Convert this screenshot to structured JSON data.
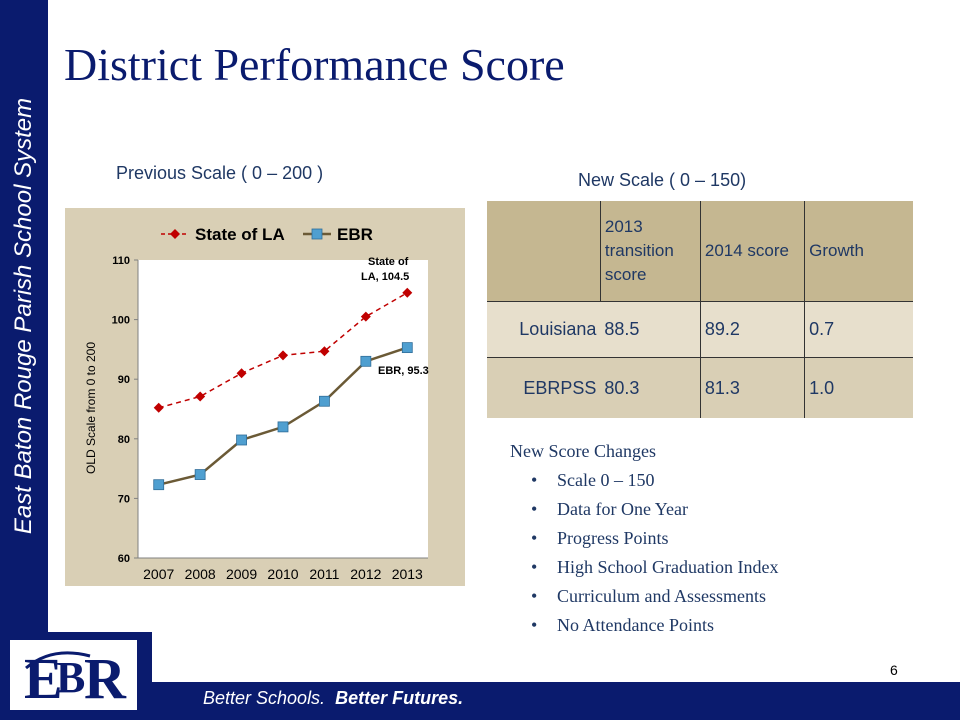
{
  "sidebar": {
    "text": "East Baton Rouge Parish School System"
  },
  "footer": {
    "tagline_a": "Better Schools.",
    "tagline_b": "Better Futures.",
    "slide_number": "6"
  },
  "logo": {
    "letters": "EBR"
  },
  "title": "District Performance Score",
  "previous_scale_label": "Previous Scale ( 0 – 200 )",
  "new_scale_label": "New Scale ( 0 – 150)",
  "table": {
    "headers": [
      "",
      "2013 transition score",
      "2014 score",
      "Growth"
    ],
    "rows": [
      [
        "Louisiana",
        "88.5",
        "89.2",
        "0.7"
      ],
      [
        "EBRPSS",
        "80.3",
        "81.3",
        "1.0"
      ]
    ]
  },
  "changes": {
    "title": "New Score Changes",
    "items": [
      "Scale 0 – 150",
      "Data for One Year",
      "Progress Points",
      "High School Graduation Index",
      "Curriculum and Assessments",
      "No Attendance Points"
    ]
  },
  "colors": {
    "navy": "#0a1b6e",
    "state_series": "#c00000",
    "ebr_series": "#4f9fd0",
    "ebr_line": "#6b5a36"
  },
  "chart_data": {
    "type": "line",
    "categories": [
      "2007",
      "2008",
      "2009",
      "2010",
      "2011",
      "2012",
      "2013"
    ],
    "ylabel": "OLD Scale from 0 to 200",
    "ylim": [
      60,
      110
    ],
    "yticks": [
      "60",
      "70",
      "80",
      "90",
      "100",
      "110"
    ],
    "legend_position": "top",
    "grid": false,
    "series": [
      {
        "name": "State of LA",
        "values": [
          85.2,
          87.1,
          91.0,
          94.0,
          94.7,
          100.5,
          104.5
        ]
      },
      {
        "name": "EBR",
        "values": [
          72.3,
          74.0,
          79.8,
          82.0,
          86.3,
          93.0,
          95.3
        ]
      }
    ],
    "annotations": [
      {
        "line1": "State of",
        "line2": "LA, 104.5"
      },
      {
        "text": "EBR, 95.3"
      }
    ]
  }
}
